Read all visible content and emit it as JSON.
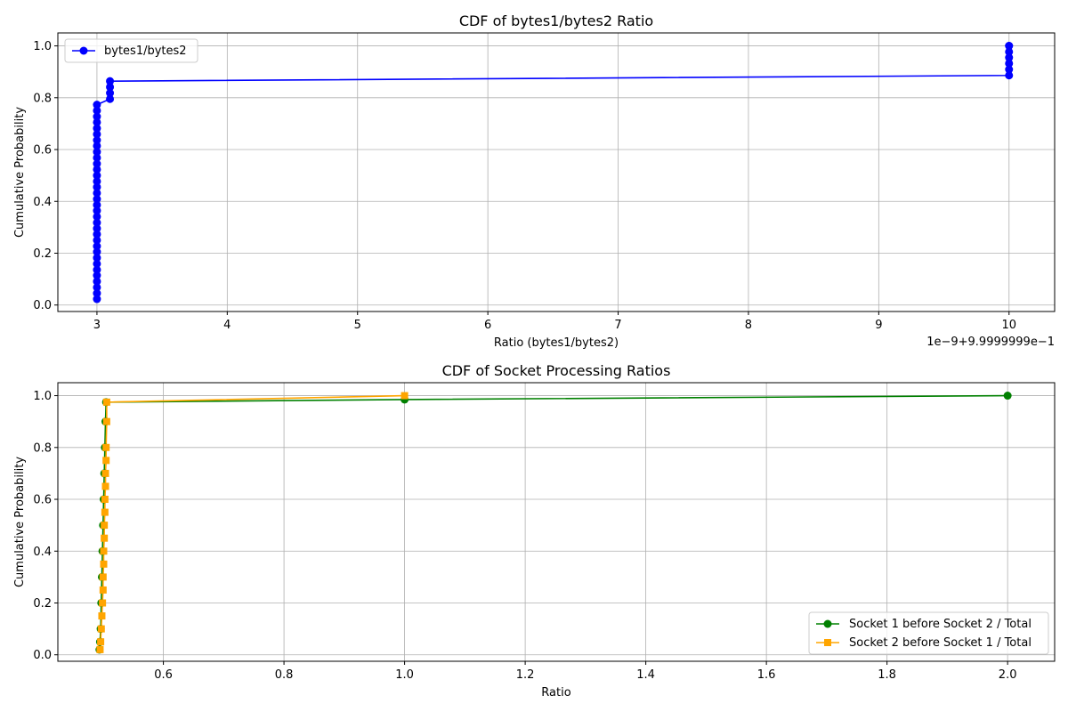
{
  "chart_data": [
    {
      "type": "line",
      "title": "CDF of bytes1/bytes2 Ratio",
      "xlabel": "Ratio (bytes1/bytes2)",
      "ylabel": "Cumulative Probability",
      "offset_label": "1e−9+9.9999999e−1",
      "xlim": [
        2.7,
        10.35
      ],
      "ylim": [
        -0.025,
        1.05
      ],
      "x_ticks": [
        3,
        4,
        5,
        6,
        7,
        8,
        9,
        10
      ],
      "x_tick_labels": [
        "3",
        "4",
        "5",
        "6",
        "7",
        "8",
        "9",
        "10"
      ],
      "y_ticks": [
        0.0,
        0.2,
        0.4,
        0.6,
        0.8,
        1.0
      ],
      "y_tick_labels": [
        "0.0",
        "0.2",
        "0.4",
        "0.6",
        "0.8",
        "1.0"
      ],
      "grid": true,
      "legend_position": "upper-left",
      "series": [
        {
          "name": "bytes1/bytes2",
          "color": "#0000ff",
          "marker": "circle",
          "x": [
            3,
            3,
            3,
            3,
            3,
            3,
            3,
            3,
            3,
            3,
            3,
            3,
            3,
            3,
            3,
            3,
            3,
            3,
            3,
            3,
            3,
            3,
            3,
            3,
            3,
            3,
            3,
            3,
            3,
            3,
            3,
            3,
            3,
            3,
            3.1,
            3.1,
            3.1,
            3.1,
            10,
            10,
            10,
            10,
            10,
            10,
            10
          ],
          "y": [
            0.023,
            0.045,
            0.068,
            0.091,
            0.114,
            0.136,
            0.159,
            0.182,
            0.205,
            0.227,
            0.25,
            0.273,
            0.295,
            0.318,
            0.341,
            0.364,
            0.386,
            0.409,
            0.432,
            0.455,
            0.477,
            0.5,
            0.523,
            0.545,
            0.568,
            0.591,
            0.614,
            0.636,
            0.659,
            0.682,
            0.705,
            0.727,
            0.75,
            0.773,
            0.795,
            0.818,
            0.841,
            0.864,
            0.886,
            0.909,
            0.932,
            0.955,
            0.977,
            1.0,
            1.0
          ]
        }
      ]
    },
    {
      "type": "line",
      "title": "CDF of Socket Processing Ratios",
      "xlabel": "Ratio",
      "ylabel": "Cumulative Probability",
      "xlim": [
        0.425,
        2.078
      ],
      "ylim": [
        -0.025,
        1.05
      ],
      "x_ticks": [
        0.6,
        0.8,
        1.0,
        1.2,
        1.4,
        1.6,
        1.8,
        2.0
      ],
      "x_tick_labels": [
        "0.6",
        "0.8",
        "1.0",
        "1.2",
        "1.4",
        "1.6",
        "1.8",
        "2.0"
      ],
      "y_ticks": [
        0.0,
        0.2,
        0.4,
        0.6,
        0.8,
        1.0
      ],
      "y_tick_labels": [
        "0.0",
        "0.2",
        "0.4",
        "0.6",
        "0.8",
        "1.0"
      ],
      "grid": true,
      "legend_position": "lower-right",
      "series": [
        {
          "name": "Socket 1 before Socket 2 / Total",
          "color": "#008000",
          "marker": "circle",
          "x": [
            0.494,
            0.495,
            0.496,
            0.497,
            0.498,
            0.499,
            0.5,
            0.501,
            0.502,
            0.503,
            0.504,
            0.505,
            1.0,
            2.0
          ],
          "y": [
            0.02,
            0.05,
            0.1,
            0.2,
            0.3,
            0.4,
            0.5,
            0.6,
            0.7,
            0.8,
            0.9,
            0.975,
            0.985,
            1.0
          ]
        },
        {
          "name": "Socket 2 before Socket 1 / Total",
          "color": "#ffa500",
          "marker": "square",
          "x": [
            0.495,
            0.496,
            0.497,
            0.498,
            0.499,
            0.5,
            0.5,
            0.501,
            0.501,
            0.502,
            0.502,
            0.503,
            0.503,
            0.504,
            0.504,
            0.505,
            0.505,
            0.506,
            0.506,
            1.0
          ],
          "y": [
            0.02,
            0.05,
            0.1,
            0.15,
            0.2,
            0.25,
            0.3,
            0.35,
            0.4,
            0.45,
            0.5,
            0.55,
            0.6,
            0.65,
            0.7,
            0.75,
            0.8,
            0.9,
            0.975,
            1.0
          ]
        }
      ]
    }
  ]
}
